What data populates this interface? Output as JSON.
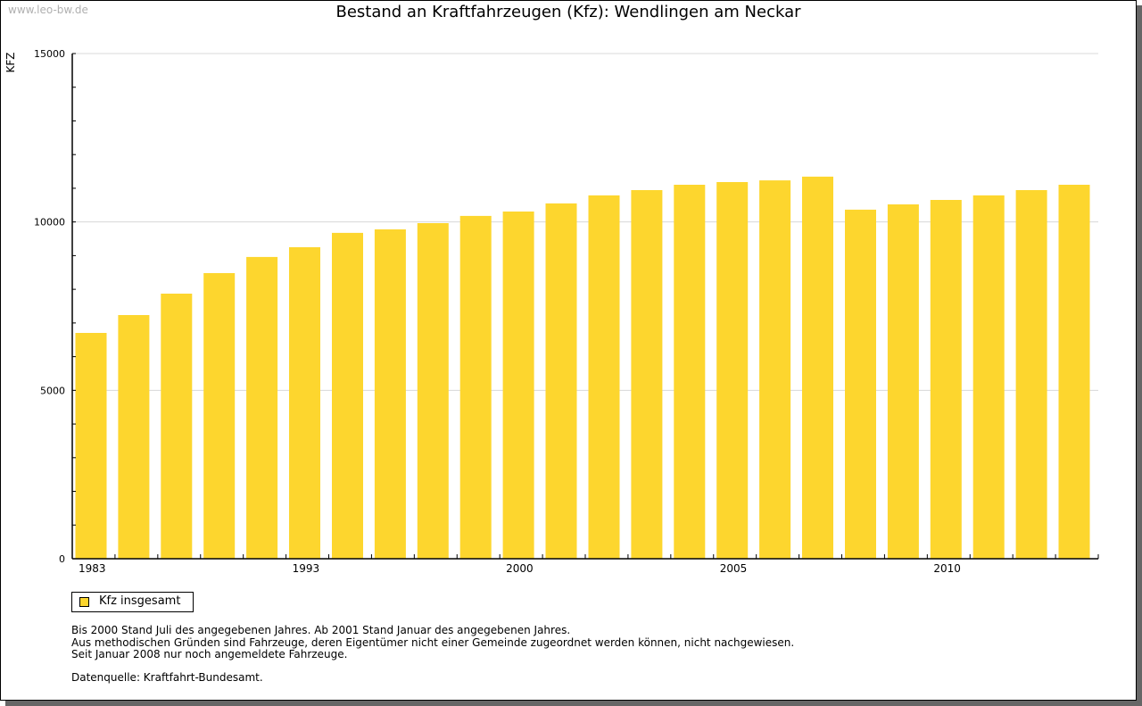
{
  "watermark": "www.leo-bw.de",
  "chart_data": {
    "type": "bar",
    "title": "Bestand an Kraftfahrzeugen (Kfz): Wendlingen am Neckar",
    "ylabel": "KFZ",
    "xlabel": "",
    "ylim": [
      0,
      15000
    ],
    "y_ticks": [
      0,
      5000,
      10000,
      15000
    ],
    "y_tick_labels": [
      "0",
      "5000",
      "10000",
      "15000"
    ],
    "y_minor_step": 1000,
    "grid": true,
    "x_tick_labels": [
      {
        "index": 0,
        "label": "1983"
      },
      {
        "index": 5,
        "label": "1993"
      },
      {
        "index": 10,
        "label": "2000"
      },
      {
        "index": 15,
        "label": "2005"
      },
      {
        "index": 20,
        "label": "2010"
      }
    ],
    "series": [
      {
        "name": "Kfz insgesamt",
        "color": "#FDD62E",
        "values": [
          6705,
          7235,
          7870,
          8480,
          8960,
          9250,
          9675,
          9780,
          9965,
          10180,
          10310,
          10550,
          10790,
          10945,
          11105,
          11185,
          11235,
          11345,
          10365,
          10520,
          10655,
          10790,
          10945,
          11105
        ]
      }
    ],
    "legend_position": "bottom-left"
  },
  "notes": [
    "Bis 2000 Stand Juli des angegebenen Jahres. Ab 2001 Stand Januar des angegebenen Jahres.",
    "Aus methodischen Gründen sind Fahrzeuge, deren Eigentümer nicht einer Gemeinde zugeordnet werden können, nicht nachgewiesen.",
    "Seit Januar 2008 nur noch angemeldete Fahrzeuge."
  ],
  "source": "Datenquelle: Kraftfahrt-Bundesamt."
}
